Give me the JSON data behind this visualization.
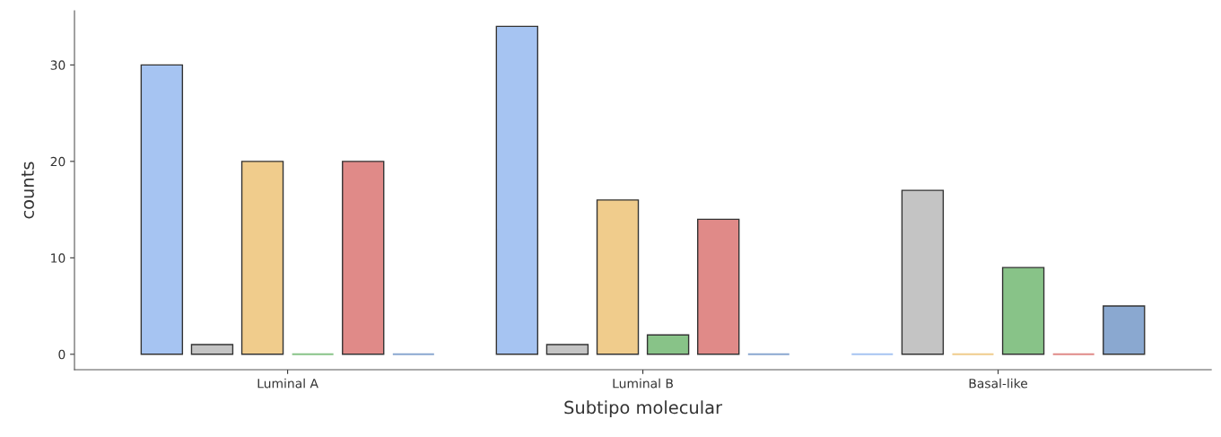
{
  "chart_data": {
    "type": "bar",
    "xlabel": "Subtipo molecular",
    "ylabel": "counts",
    "categories": [
      "Luminal A",
      "Luminal B",
      "Basal-like"
    ],
    "series": [
      {
        "color": "#a6c4f2",
        "values": [
          30,
          34,
          0
        ]
      },
      {
        "color": "#c4c4c4",
        "values": [
          1,
          1,
          17
        ]
      },
      {
        "color": "#f0cc8c",
        "values": [
          20,
          16,
          0
        ]
      },
      {
        "color": "#88c388",
        "values": [
          0,
          2,
          9
        ]
      },
      {
        "color": "#e08a88",
        "values": [
          20,
          14,
          0
        ]
      },
      {
        "color": "#8aa8d0",
        "values": [
          0,
          0,
          5
        ]
      }
    ],
    "ylim": [
      -1.6,
      35.6
    ],
    "yticks": [
      0,
      10,
      20,
      30
    ],
    "grid": false,
    "legend": false
  }
}
